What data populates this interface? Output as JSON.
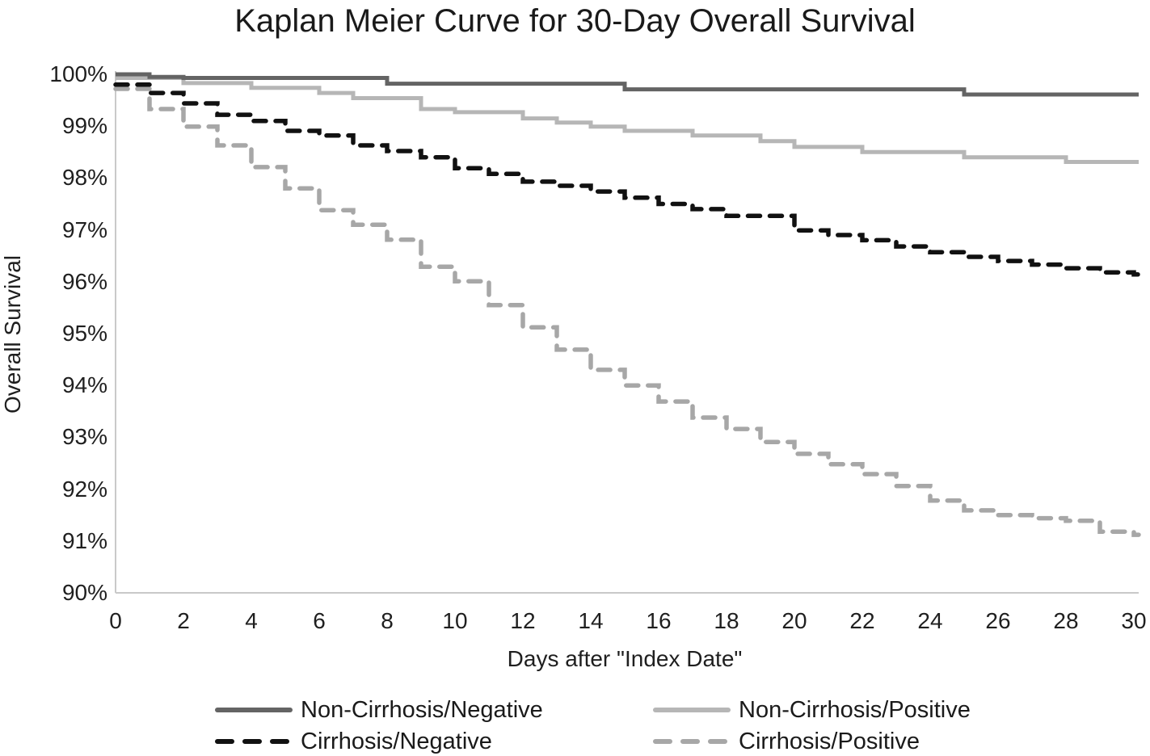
{
  "title": "Kaplan Meier Curve for 30-Day Overall Survival",
  "colors": {
    "axis_line": "#c9c9c9",
    "text": "#1f1f1f",
    "background": "#ffffff"
  },
  "chart_data": {
    "type": "line",
    "subtype": "kaplan-meier-step",
    "title": "Kaplan Meier Curve for 30-Day Overall Survival",
    "xlabel": "Days after \"Index Date\"",
    "ylabel": "Overall Survival",
    "xlim": [
      0,
      30
    ],
    "ylim": [
      90,
      100
    ],
    "x_ticks": [
      0,
      2,
      4,
      6,
      8,
      10,
      12,
      14,
      16,
      18,
      20,
      22,
      24,
      26,
      28,
      30
    ],
    "y_ticks": [
      100,
      99,
      98,
      97,
      96,
      95,
      94,
      93,
      92,
      91,
      90
    ],
    "y_tick_suffix": "%",
    "grid": false,
    "legend_position": "bottom",
    "series": [
      {
        "name": "Non-Cirrhosis/Negative",
        "color": "#646464",
        "dash": "solid",
        "points": [
          [
            0,
            100
          ],
          [
            1,
            99.95
          ],
          [
            2,
            99.93
          ],
          [
            8,
            99.82
          ],
          [
            15,
            99.71
          ],
          [
            25,
            99.61
          ],
          [
            30,
            99.61
          ]
        ]
      },
      {
        "name": "Non-Cirrhosis/Positive",
        "color": "#b6b6b6",
        "dash": "solid",
        "points": [
          [
            0,
            99.93
          ],
          [
            2,
            99.83
          ],
          [
            4,
            99.74
          ],
          [
            6,
            99.64
          ],
          [
            7,
            99.54
          ],
          [
            9,
            99.33
          ],
          [
            10,
            99.27
          ],
          [
            12,
            99.15
          ],
          [
            13,
            99.07
          ],
          [
            14,
            98.99
          ],
          [
            15,
            98.91
          ],
          [
            17,
            98.82
          ],
          [
            19,
            98.71
          ],
          [
            20,
            98.6
          ],
          [
            22,
            98.5
          ],
          [
            25,
            98.4
          ],
          [
            28,
            98.31
          ],
          [
            30,
            98.31
          ]
        ]
      },
      {
        "name": "Cirrhosis/Negative",
        "color": "#111111",
        "dash": "dashed",
        "points": [
          [
            0,
            99.8
          ],
          [
            1,
            99.64
          ],
          [
            2,
            99.44
          ],
          [
            3,
            99.22
          ],
          [
            4,
            99.1
          ],
          [
            5,
            98.91
          ],
          [
            6,
            98.82
          ],
          [
            7,
            98.63
          ],
          [
            8,
            98.52
          ],
          [
            9,
            98.4
          ],
          [
            10,
            98.19
          ],
          [
            11,
            98.08
          ],
          [
            12,
            97.93
          ],
          [
            13,
            97.85
          ],
          [
            14,
            97.74
          ],
          [
            15,
            97.62
          ],
          [
            16,
            97.5
          ],
          [
            17,
            97.4
          ],
          [
            18,
            97.27
          ],
          [
            20,
            96.99
          ],
          [
            21,
            96.9
          ],
          [
            22,
            96.8
          ],
          [
            23,
            96.68
          ],
          [
            24,
            96.57
          ],
          [
            25,
            96.48
          ],
          [
            26,
            96.4
          ],
          [
            27,
            96.33
          ],
          [
            28,
            96.26
          ],
          [
            29,
            96.18
          ],
          [
            30,
            96.14
          ]
        ]
      },
      {
        "name": "Cirrhosis/Positive",
        "color": "#a7a7a7",
        "dash": "dashed",
        "points": [
          [
            0,
            99.72
          ],
          [
            1,
            99.33
          ],
          [
            2,
            98.99
          ],
          [
            3,
            98.63
          ],
          [
            4,
            98.21
          ],
          [
            5,
            97.8
          ],
          [
            6,
            97.38
          ],
          [
            7,
            97.1
          ],
          [
            8,
            96.81
          ],
          [
            9,
            96.29
          ],
          [
            10,
            96.01
          ],
          [
            11,
            95.55
          ],
          [
            12,
            95.12
          ],
          [
            13,
            94.69
          ],
          [
            14,
            94.3
          ],
          [
            15,
            94.0
          ],
          [
            16,
            93.69
          ],
          [
            17,
            93.38
          ],
          [
            18,
            93.16
          ],
          [
            19,
            92.91
          ],
          [
            20,
            92.68
          ],
          [
            21,
            92.48
          ],
          [
            22,
            92.29
          ],
          [
            23,
            92.06
          ],
          [
            24,
            91.78
          ],
          [
            25,
            91.59
          ],
          [
            26,
            91.5
          ],
          [
            27,
            91.44
          ],
          [
            28,
            91.39
          ],
          [
            29,
            91.18
          ],
          [
            30,
            91.12
          ]
        ]
      }
    ],
    "legend": [
      "Non-Cirrhosis/Negative",
      "Non-Cirrhosis/Positive",
      "Cirrhosis/Negative",
      "Cirrhosis/Positive"
    ]
  }
}
